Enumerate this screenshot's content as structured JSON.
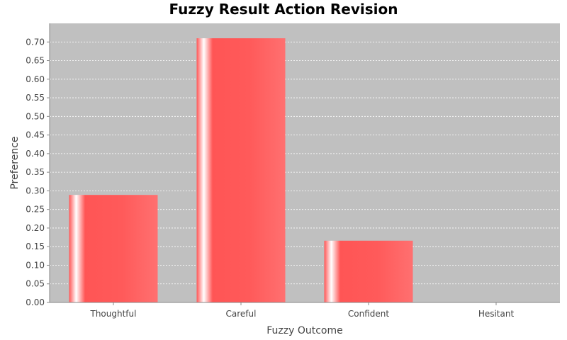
{
  "chart_data": {
    "type": "bar",
    "title": "Fuzzy Result Action Revision",
    "xlabel": "Fuzzy Outcome",
    "ylabel": "Preference",
    "categories": [
      "Thoughtful",
      "Careful",
      "Confident",
      "Hesitant"
    ],
    "values": [
      0.289,
      0.71,
      0.166,
      0.0
    ],
    "ylim": [
      0,
      0.75
    ],
    "yticks": [
      "0.00",
      "0.05",
      "0.10",
      "0.15",
      "0.20",
      "0.25",
      "0.30",
      "0.35",
      "0.40",
      "0.45",
      "0.50",
      "0.55",
      "0.60",
      "0.65",
      "0.70"
    ],
    "grid": true,
    "legend": "none",
    "colors": {
      "bar": "#ff5555",
      "bar_highlight": "#ffffff",
      "plot_background": "#c0c0c0",
      "gridline": "#ffffff"
    }
  }
}
